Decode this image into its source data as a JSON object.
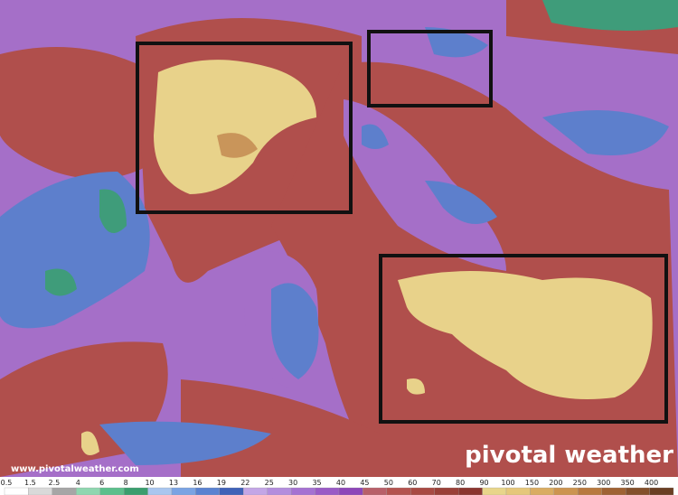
{
  "watermark": "www.pivotalweather.com",
  "logo": "pivotal weather",
  "legend": {
    "labels": [
      0.5,
      1.5,
      2.5,
      4,
      6,
      8,
      10,
      13,
      16,
      19,
      22,
      25,
      30,
      35,
      40,
      45,
      50,
      60,
      70,
      80,
      90,
      100,
      150,
      200,
      250,
      300,
      350,
      400
    ],
    "colors": [
      "#ffffff",
      "#d9d9d9",
      "#a6a6a6",
      "#8fd6b0",
      "#5cbf8c",
      "#3a9e6e",
      "#a9c6ef",
      "#7aa3e3",
      "#5a82d1",
      "#3f62b8",
      "#c3a6e6",
      "#b38ddd",
      "#a571d2",
      "#9a5bc6",
      "#8d46b9",
      "#b86069",
      "#b4534f",
      "#a84a43",
      "#9a4038",
      "#8b362f",
      "#e8d58a",
      "#e5c77a",
      "#d9ac62",
      "#cc9450",
      "#b8793f",
      "#9f6233",
      "#84502b",
      "#6a3f23"
    ]
  }
}
